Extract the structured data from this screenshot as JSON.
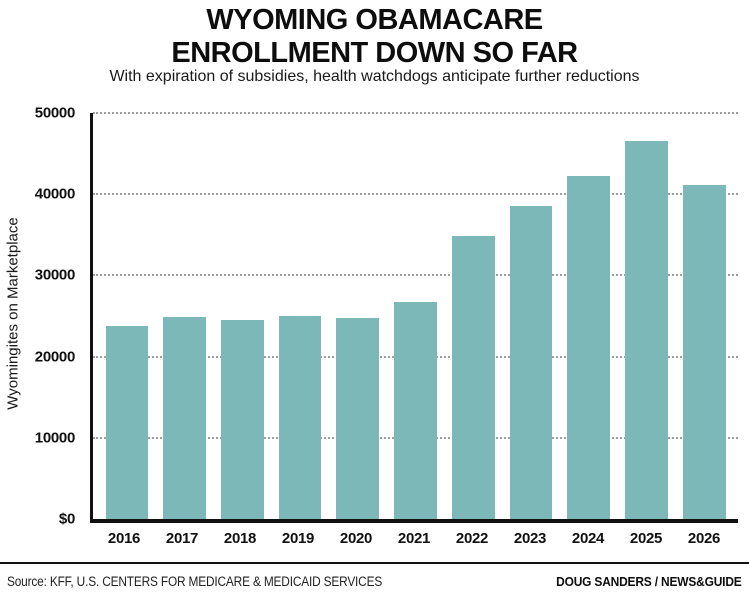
{
  "header": {
    "title_line1": "WYOMING OBAMACARE",
    "title_line2": "ENROLLMENT DOWN SO FAR",
    "subtitle": "With expiration of subsidies, health watchdogs anticipate further reductions"
  },
  "chart_data": {
    "type": "bar",
    "title": "WYOMING OBAMACARE ENROLLMENT DOWN SO FAR",
    "subtitle": "With expiration of subsidies, health watchdogs anticipate further reductions",
    "categories": [
      "2016",
      "2017",
      "2018",
      "2019",
      "2020",
      "2021",
      "2022",
      "2023",
      "2024",
      "2025",
      "2026"
    ],
    "values": [
      23800,
      24900,
      24550,
      25000,
      24700,
      26700,
      34900,
      38500,
      42300,
      46500,
      41100
    ],
    "xlabel": "",
    "ylabel": "Wyomingites on Marketplace",
    "ylim": [
      0,
      50000
    ],
    "ytick_step": 10000,
    "ytick_labels": [
      "$0",
      "10000",
      "20000",
      "30000",
      "40000",
      "50000"
    ],
    "grid": "horizontal-dotted",
    "legend": "none",
    "bar_color": "#7db8b9"
  },
  "footer": {
    "source": "Source: KFF, U.S. CENTERS FOR MEDICARE & MEDICAID SERVICES",
    "credit": "DOUG SANDERS / NEWS&GUIDE"
  }
}
